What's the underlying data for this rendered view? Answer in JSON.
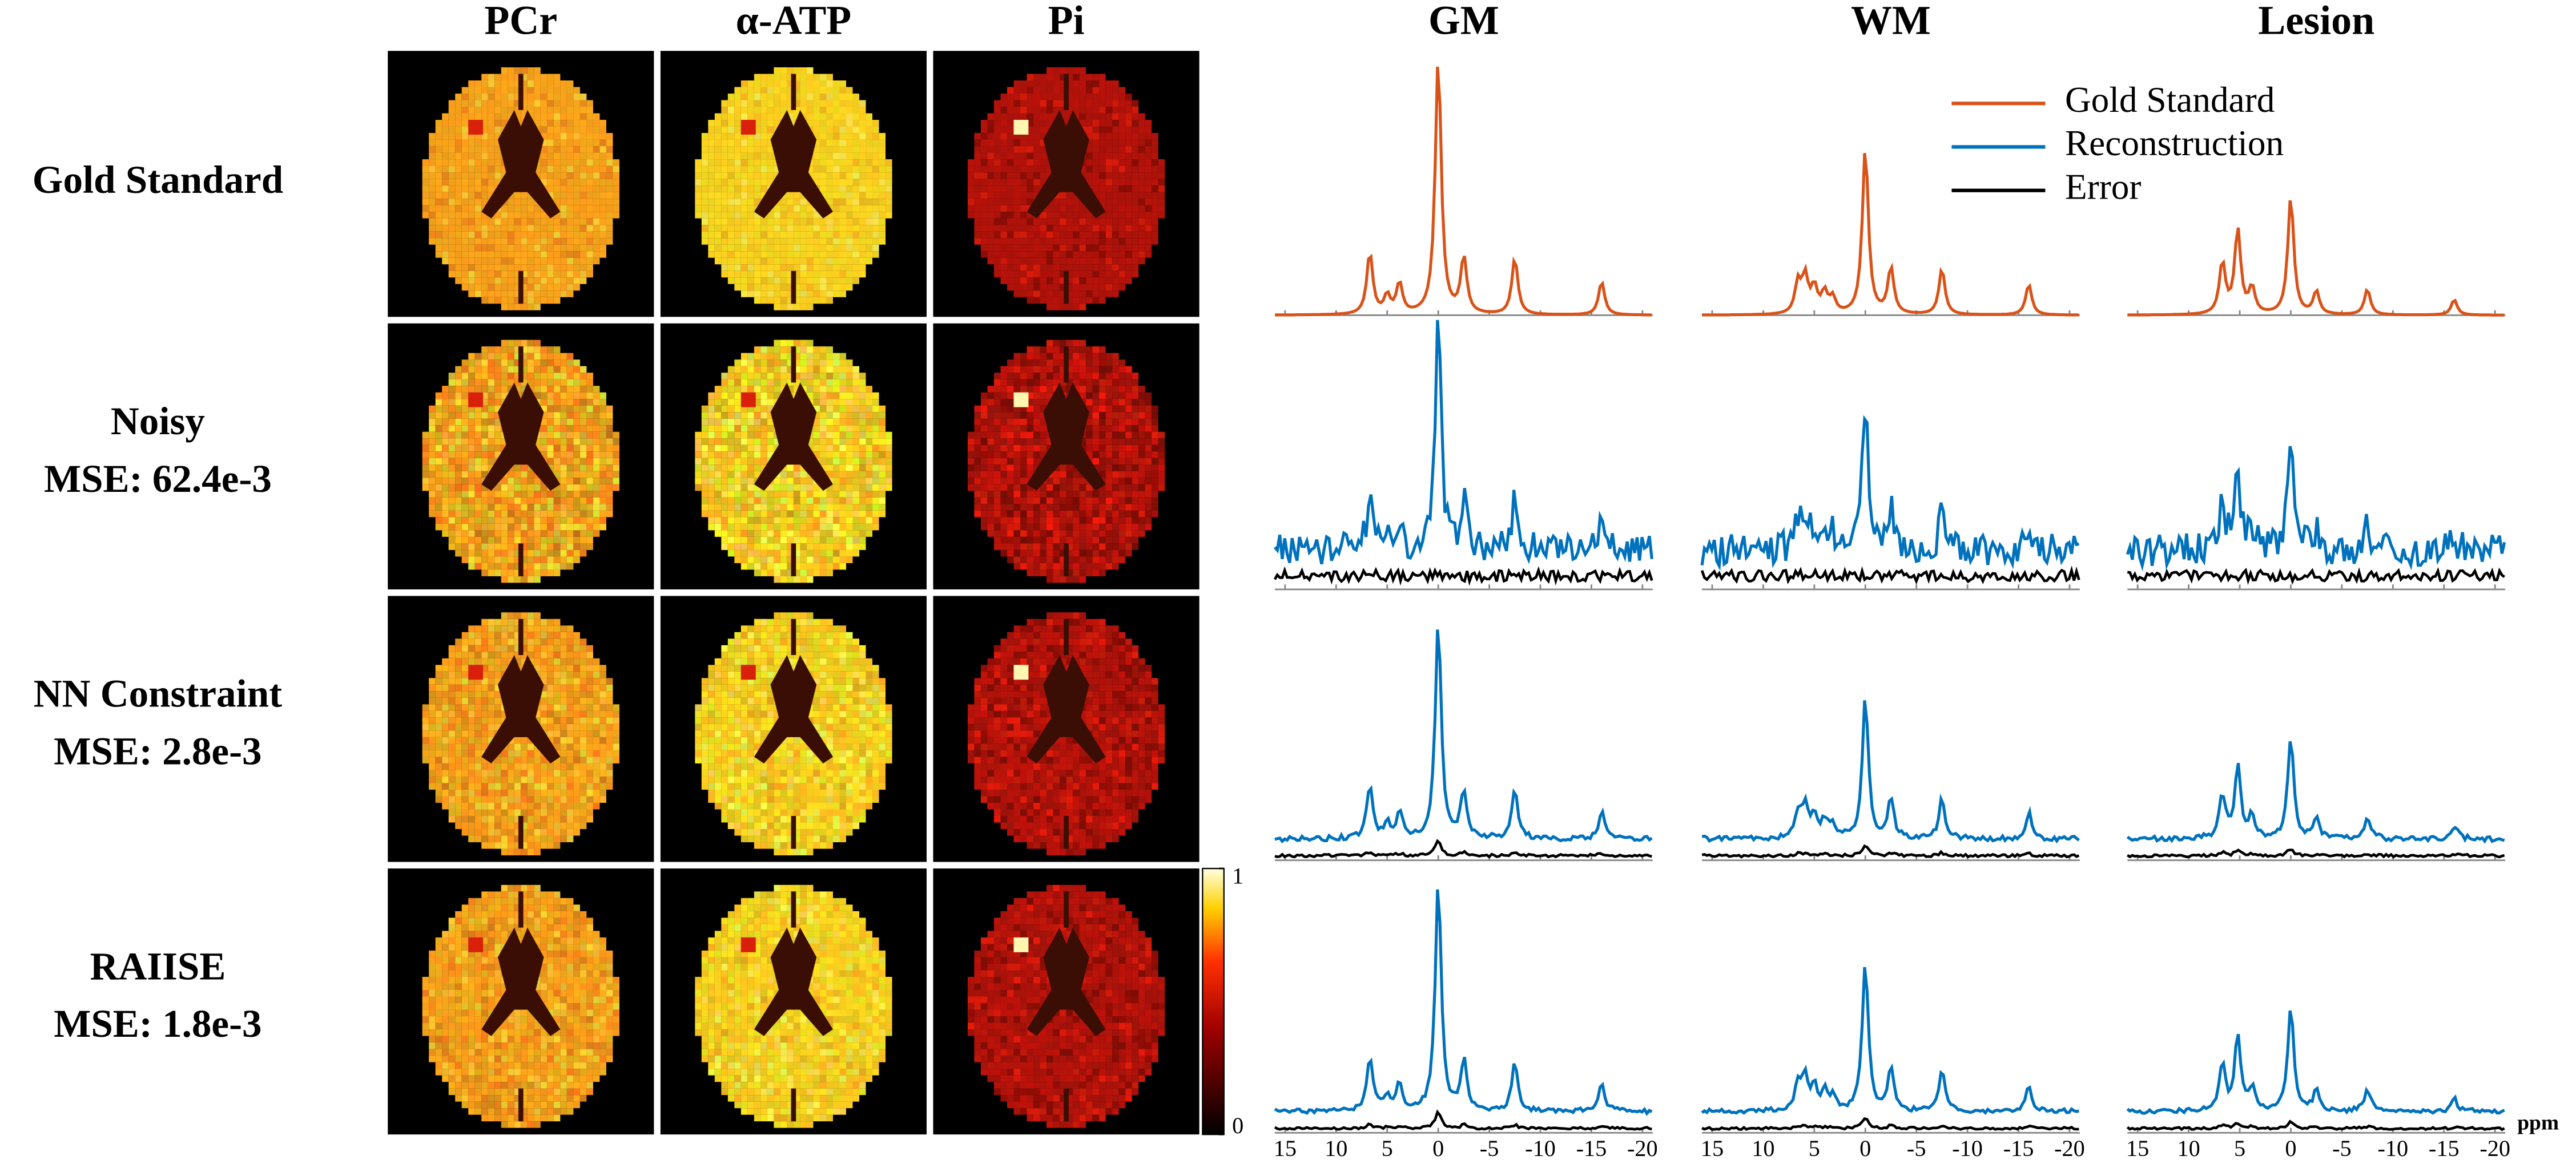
{
  "maps": {
    "columns": [
      "PCr",
      "α-ATP",
      "Pi"
    ],
    "rows": [
      {
        "label": "Gold Standard"
      },
      {
        "label": "Noisy",
        "mse": "MSE: 62.4e-3"
      },
      {
        "label": "NN Constraint",
        "mse": "MSE: 2.8e-3"
      },
      {
        "label": "RAIISE",
        "mse": "MSE: 1.8e-3"
      }
    ],
    "colorbar": {
      "ticks": [
        0,
        1
      ]
    }
  },
  "spectra": {
    "columns": [
      {
        "title": "GM",
        "peaks": [
          [
            6.7,
            0.24
          ],
          [
            5,
            0.07
          ],
          [
            3.8,
            0.12
          ],
          [
            0,
            1.0
          ],
          [
            -2.5,
            0.22
          ],
          [
            -7.5,
            0.22
          ],
          [
            -16,
            0.13
          ]
        ]
      },
      {
        "title": "WM",
        "peaks": [
          [
            6.6,
            0.12
          ],
          [
            5.9,
            0.14
          ],
          [
            5,
            0.1
          ],
          [
            4,
            0.08
          ],
          [
            3.2,
            0.06
          ],
          [
            0,
            0.65
          ],
          [
            -2.5,
            0.18
          ],
          [
            -7.5,
            0.18
          ],
          [
            -16,
            0.12
          ]
        ]
      },
      {
        "title": "Lesion",
        "peaks": [
          [
            6.7,
            0.2
          ],
          [
            5.2,
            0.33
          ],
          [
            3.8,
            0.1
          ],
          [
            0,
            0.46
          ],
          [
            -2.5,
            0.09
          ],
          [
            -7.5,
            0.1
          ],
          [
            -16,
            0.06
          ]
        ]
      }
    ],
    "legend": [
      {
        "name": "Gold Standard",
        "color": "#d95319"
      },
      {
        "name": "Reconstruction",
        "color": "#0072bd"
      },
      {
        "name": "Error",
        "color": "#000000"
      }
    ],
    "xlim": [
      16,
      -21
    ],
    "xticks": [
      15,
      10,
      5,
      0,
      -5,
      -10,
      -15,
      -20
    ],
    "xlabel": "ppm"
  }
}
